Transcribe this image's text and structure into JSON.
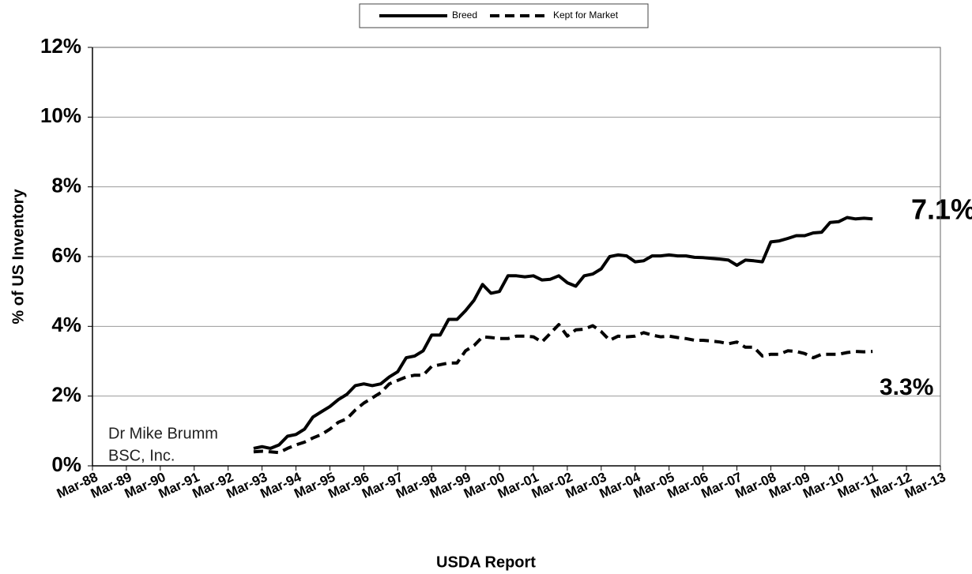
{
  "chart_data": {
    "type": "line",
    "ylabel": "% of US Inventory",
    "xlabel": "USDA Report",
    "legend": "top",
    "grid": true,
    "ylim": [
      0,
      12
    ],
    "yticks": [
      {
        "value": 0,
        "label": "0%"
      },
      {
        "value": 2,
        "label": "2%"
      },
      {
        "value": 4,
        "label": "4%"
      },
      {
        "value": 6,
        "label": "6%"
      },
      {
        "value": 8,
        "label": "8%"
      },
      {
        "value": 10,
        "label": "10%"
      },
      {
        "value": 12,
        "label": "12%"
      }
    ],
    "categories": [
      "Mar-88",
      null,
      null,
      null,
      "Mar-89",
      null,
      null,
      null,
      "Mar-90",
      null,
      null,
      null,
      "Mar-91",
      null,
      null,
      null,
      "Mar-92",
      null,
      null,
      null,
      "Mar-93",
      null,
      null,
      null,
      "Mar-94",
      null,
      null,
      null,
      "Mar-95",
      null,
      null,
      null,
      "Mar-96",
      null,
      null,
      null,
      "Mar-97",
      null,
      null,
      null,
      "Mar-98",
      null,
      null,
      null,
      "Mar-99",
      null,
      null,
      null,
      "Mar-00",
      null,
      null,
      null,
      "Mar-01",
      null,
      null,
      null,
      "Mar-02",
      null,
      null,
      null,
      "Mar-03",
      null,
      null,
      null,
      "Mar-04",
      null,
      null,
      null,
      "Mar-05",
      null,
      null,
      null,
      "Mar-06",
      null,
      null,
      null,
      "Mar-07",
      null,
      null,
      null,
      "Mar-08",
      null,
      null,
      null,
      "Mar-09",
      null,
      null,
      null,
      "Mar-10",
      null,
      null,
      null,
      "Mar-11",
      null,
      null,
      null,
      "Mar-12",
      null,
      null,
      null,
      "Mar-13"
    ],
    "series": [
      {
        "name": "Breed",
        "color": "#000000",
        "style": "solid",
        "values": [
          null,
          null,
          null,
          null,
          null,
          null,
          null,
          null,
          null,
          null,
          null,
          null,
          null,
          null,
          null,
          null,
          null,
          null,
          null,
          0.5,
          0.55,
          0.5,
          0.6,
          0.85,
          0.9,
          1.05,
          1.4,
          1.55,
          1.7,
          1.9,
          2.05,
          2.3,
          2.35,
          2.3,
          2.35,
          2.55,
          2.7,
          3.1,
          3.15,
          3.3,
          3.75,
          3.75,
          4.2,
          4.2,
          4.45,
          4.75,
          5.2,
          4.95,
          5.0,
          5.45,
          5.45,
          5.42,
          5.45,
          5.33,
          5.35,
          5.45,
          5.25,
          5.15,
          5.45,
          5.5,
          5.65,
          6.0,
          6.05,
          6.02,
          5.85,
          5.88,
          6.02,
          6.02,
          6.05,
          6.02,
          6.02,
          5.98,
          5.97,
          5.95,
          5.93,
          5.9,
          5.75,
          5.9,
          5.88,
          5.85,
          6.42,
          6.45,
          6.52,
          6.6,
          6.6,
          6.68,
          6.7,
          6.98,
          7.0,
          7.12,
          7.08,
          7.1,
          7.08,
          null,
          null,
          null,
          null,
          null,
          null,
          null,
          null
        ]
      },
      {
        "name": "Kept for Market",
        "color": "#000000",
        "style": "dashed",
        "values": [
          null,
          null,
          null,
          null,
          null,
          null,
          null,
          null,
          null,
          null,
          null,
          null,
          null,
          null,
          null,
          null,
          null,
          null,
          null,
          0.4,
          0.42,
          0.4,
          0.38,
          0.5,
          0.6,
          0.68,
          0.8,
          0.9,
          1.05,
          1.25,
          1.35,
          1.6,
          1.8,
          1.95,
          2.1,
          2.35,
          2.45,
          2.55,
          2.6,
          2.6,
          2.85,
          2.9,
          2.95,
          2.95,
          3.3,
          3.45,
          3.7,
          3.68,
          3.65,
          3.65,
          3.72,
          3.72,
          3.7,
          3.55,
          3.8,
          4.05,
          3.72,
          3.9,
          3.92,
          4.02,
          3.85,
          3.6,
          3.72,
          3.7,
          3.72,
          3.82,
          3.75,
          3.7,
          3.72,
          3.68,
          3.65,
          3.6,
          3.6,
          3.58,
          3.55,
          3.5,
          3.55,
          3.4,
          3.4,
          3.15,
          3.2,
          3.2,
          3.3,
          3.28,
          3.22,
          3.1,
          3.2,
          3.2,
          3.2,
          3.25,
          3.28,
          3.27,
          3.28,
          null,
          null,
          null,
          null,
          null,
          null,
          null,
          null
        ]
      }
    ],
    "annotations": [
      "7.1%",
      "3.3%",
      "Dr Mike Brumm",
      "BSC, Inc."
    ]
  }
}
